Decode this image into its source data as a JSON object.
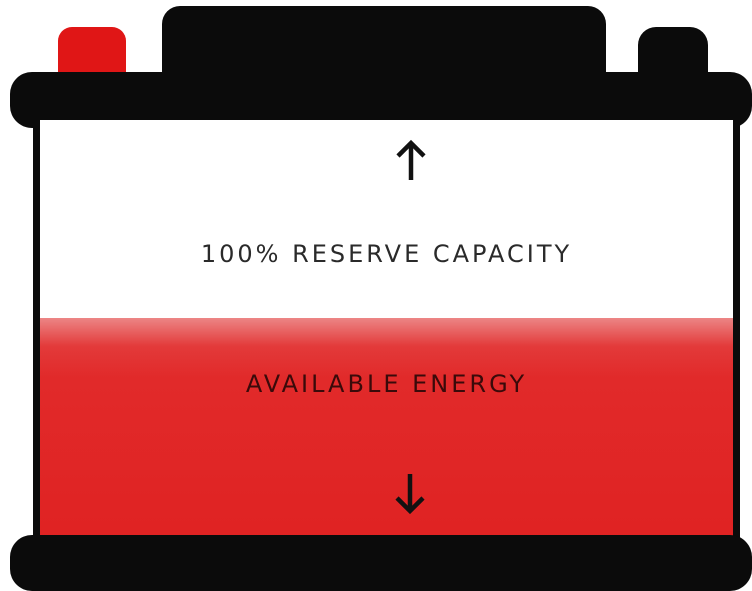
{
  "diagram": {
    "reserve_label": "100% RESERVE CAPACITY",
    "energy_label": "AVAILABLE ENERGY",
    "available_energy_fraction": 0.5,
    "icons": [
      "arrow-up-icon",
      "arrow-down-icon"
    ],
    "colors": {
      "casing": "#0b0b0b",
      "positive_terminal": "#e01616",
      "energy_fill": "#e02222",
      "background": "#ffffff"
    }
  }
}
